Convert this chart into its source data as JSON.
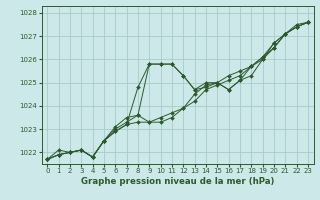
{
  "title": "Graphe pression niveau de la mer (hPa)",
  "bg_color": "#cce8e8",
  "grid_color": "#aacaca",
  "line_color": "#2d5a2d",
  "xlim": [
    -0.5,
    23.5
  ],
  "ylim": [
    1021.5,
    1028.3
  ],
  "yticks": [
    1022,
    1023,
    1024,
    1025,
    1026,
    1027,
    1028
  ],
  "xticks": [
    0,
    1,
    2,
    3,
    4,
    5,
    6,
    7,
    8,
    9,
    10,
    11,
    12,
    13,
    14,
    15,
    16,
    17,
    18,
    19,
    20,
    21,
    22,
    23
  ],
  "tick_fontsize": 5.0,
  "xlabel_fontsize": 6.2,
  "series": [
    [
      1021.7,
      1021.9,
      1022.0,
      1022.1,
      1021.8,
      1022.5,
      1022.9,
      1023.2,
      1023.3,
      1023.3,
      1023.5,
      1023.7,
      1023.9,
      1024.2,
      1024.7,
      1024.9,
      1025.1,
      1025.3,
      1025.7,
      1026.1,
      1026.5,
      1027.1,
      1027.4,
      1027.6
    ],
    [
      1021.7,
      1021.9,
      1022.0,
      1022.1,
      1021.8,
      1022.5,
      1023.0,
      1023.3,
      1023.6,
      1025.8,
      1025.8,
      1025.8,
      1025.3,
      1024.7,
      1025.0,
      1025.0,
      1024.7,
      1025.1,
      1025.3,
      1026.0,
      1026.5,
      1027.1,
      1027.4,
      1027.6
    ],
    [
      1021.7,
      1021.9,
      1022.0,
      1022.1,
      1021.8,
      1022.5,
      1022.9,
      1023.2,
      1024.8,
      1025.8,
      1025.8,
      1025.8,
      1025.3,
      1024.7,
      1024.8,
      1025.0,
      1024.7,
      1025.1,
      1025.7,
      1026.0,
      1026.7,
      1027.1,
      1027.5,
      1027.6
    ],
    [
      1021.7,
      1022.1,
      1022.0,
      1022.1,
      1021.8,
      1022.5,
      1023.1,
      1023.5,
      1023.6,
      1023.3,
      1023.3,
      1023.5,
      1023.9,
      1024.5,
      1024.9,
      1025.0,
      1025.3,
      1025.5,
      1025.7,
      1026.1,
      1026.7,
      1027.1,
      1027.4,
      1027.6
    ]
  ]
}
